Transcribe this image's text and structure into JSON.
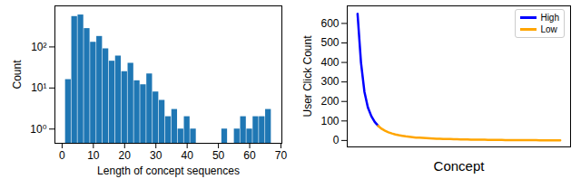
{
  "chart_data": [
    {
      "type": "histogram",
      "xlabel": "Length of concept sequences",
      "ylabel": "Count",
      "bins": [
        1,
        3,
        5,
        7,
        9,
        11,
        13,
        15,
        17,
        19,
        21,
        23,
        25,
        27,
        29,
        31,
        33,
        35,
        37,
        39,
        41,
        43,
        45,
        47,
        49,
        51,
        53,
        55,
        57,
        59,
        61,
        63,
        65,
        67
      ],
      "counts": [
        16,
        550,
        600,
        280,
        130,
        180,
        90,
        45,
        60,
        25,
        40,
        15,
        12,
        22,
        8,
        5,
        2,
        3,
        1,
        2,
        1,
        0,
        0,
        0,
        0,
        1,
        0,
        1,
        2,
        1,
        2,
        2,
        3
      ],
      "color": "#1f77b4",
      "log": "y",
      "xlim": [
        -2.3,
        70.3
      ],
      "ylim": [
        0.45,
        1000
      ],
      "xticks": [
        0,
        10,
        20,
        30,
        40,
        50,
        60,
        70
      ],
      "yticks": [
        {
          "value": 1,
          "label": "10⁰"
        },
        {
          "value": 10,
          "label": "10¹"
        },
        {
          "value": 100,
          "label": "10²"
        }
      ]
    },
    {
      "type": "line",
      "xlabel": "Concept",
      "ylabel": "User Click Count",
      "x": [
        0,
        1,
        2,
        3,
        4,
        5,
        6,
        7,
        8,
        9,
        10,
        11,
        12,
        13,
        14,
        15,
        16,
        17,
        18,
        19,
        20,
        21,
        22,
        23,
        24,
        25,
        26,
        27,
        28,
        29,
        30,
        31,
        32,
        33,
        34,
        35,
        36,
        37,
        38,
        39,
        40,
        41,
        42,
        43,
        44,
        45,
        46,
        47,
        48,
        49,
        50,
        51,
        52,
        53,
        54,
        55,
        56,
        57,
        58,
        59
      ],
      "series": [
        {
          "name": "High",
          "color": "#0000ff",
          "line_style": "solid",
          "values": [
            650,
            400,
            250,
            170,
            125,
            95,
            75,
            null,
            null,
            null,
            null,
            null,
            null,
            null,
            null,
            null,
            null,
            null,
            null,
            null,
            null,
            null,
            null,
            null,
            null,
            null,
            null,
            null,
            null,
            null,
            null,
            null,
            null,
            null,
            null,
            null,
            null,
            null,
            null,
            null,
            null,
            null,
            null,
            null,
            null,
            null,
            null,
            null,
            null,
            null,
            null,
            null,
            null,
            null,
            null,
            null,
            null,
            null,
            null,
            null
          ]
        },
        {
          "name": "Low",
          "color": "#ffa500",
          "line_style": "solid",
          "values": [
            null,
            null,
            null,
            null,
            null,
            null,
            75,
            60,
            50,
            42,
            36,
            31,
            27,
            24,
            21,
            19,
            17,
            15,
            14,
            13,
            12,
            11,
            10,
            9,
            8.5,
            8,
            7.5,
            7,
            6.5,
            6,
            5.5,
            5,
            4.8,
            4.5,
            4.2,
            4,
            3.8,
            3.5,
            3.3,
            3,
            2.8,
            2.6,
            2.4,
            2.2,
            2,
            1.9,
            1.8,
            1.7,
            1.6,
            1.5,
            1.4,
            1.3,
            1.2,
            1.1,
            1,
            1,
            1,
            1,
            1,
            1
          ]
        }
      ],
      "xlim": [
        -3,
        62
      ],
      "ylim": [
        -33,
        690
      ],
      "yticks": [
        0,
        100,
        200,
        300,
        400,
        500,
        600
      ],
      "legend": "upper right",
      "tick_labels": "y"
    }
  ]
}
